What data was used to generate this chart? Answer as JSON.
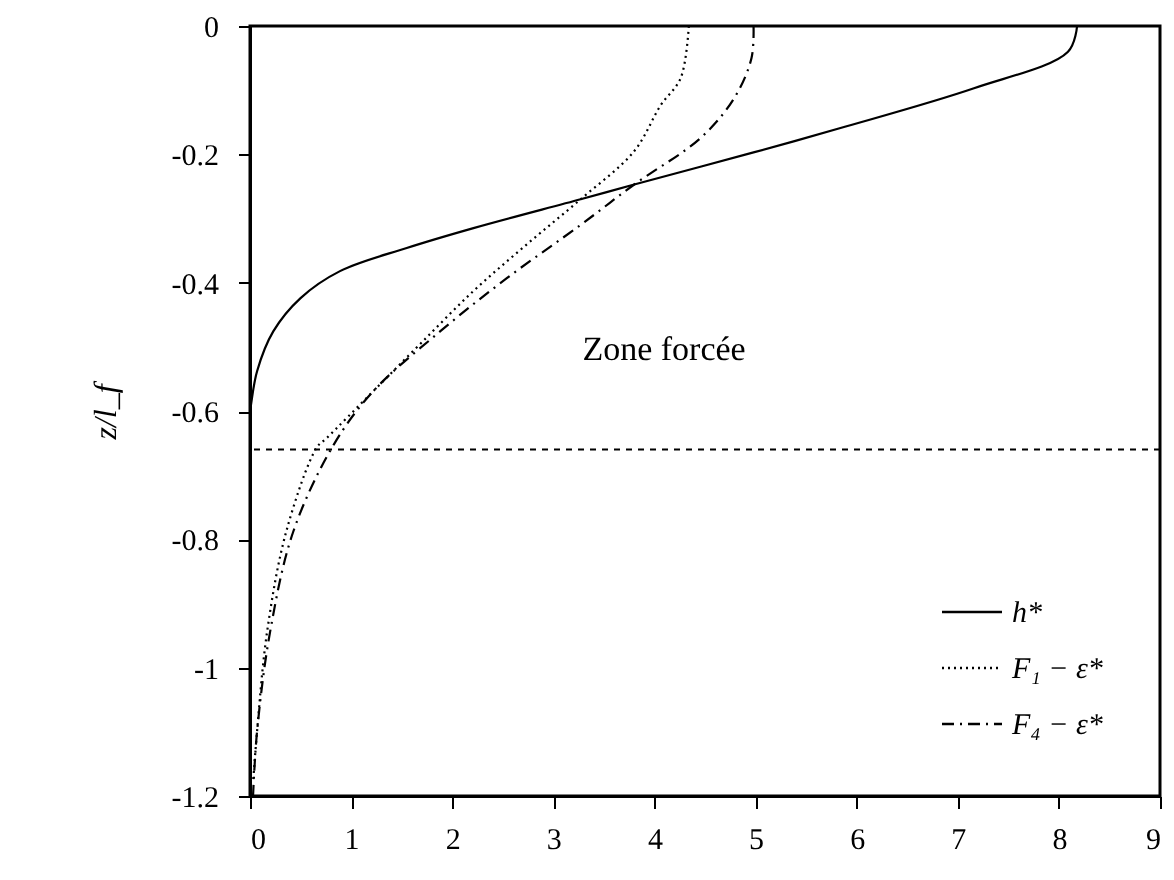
{
  "chart_data": {
    "type": "line",
    "ylabel": "z/l_f",
    "xlim": [
      0,
      9
    ],
    "xticks": [
      0,
      1,
      2,
      3,
      4,
      5,
      6,
      7,
      8,
      9
    ],
    "ylim": [
      -1.2,
      0
    ],
    "yticks": [
      0,
      -0.2,
      -0.4,
      -0.6,
      -0.8,
      -1,
      -1.2
    ],
    "grid": false,
    "legend": "bottom right",
    "marker": "none",
    "series": [
      {
        "name": "h*",
        "color": "#000000",
        "line_style": "solid",
        "x": [
          8.18,
          8.09,
          7.16,
          5.84,
          4.98,
          3.8,
          3.27,
          2.21,
          1.55,
          0.89,
          0.5,
          0.23,
          0.07,
          0.01,
          0
        ],
        "values": [
          0,
          -0.04,
          -0.097,
          -0.159,
          -0.197,
          -0.247,
          -0.27,
          -0.315,
          -0.346,
          -0.382,
          -0.424,
          -0.476,
          -0.538,
          -0.59,
          -0.6
        ]
      },
      {
        "name": "F₁ − ε*",
        "color": "#000000",
        "line_style": "dotted",
        "x": [
          4.34,
          4.26,
          4.06,
          3.8,
          3.27,
          2.74,
          2.21,
          1.68,
          1.22,
          0.76,
          0.66,
          0.36,
          0.17,
          0.07,
          0.03
        ],
        "values": [
          0,
          -0.081,
          -0.124,
          -0.195,
          -0.27,
          -0.34,
          -0.413,
          -0.496,
          -0.569,
          -0.642,
          -0.657,
          -0.787,
          -0.943,
          -1.099,
          -1.18
        ]
      },
      {
        "name": "F₄ − ε*",
        "color": "#000000",
        "line_style": "dashdot",
        "x": [
          4.98,
          4.96,
          4.79,
          4.46,
          3.8,
          3.27,
          2.54,
          1.88,
          1.22,
          0.83,
          0.43,
          0.2,
          0.07,
          0.03
        ],
        "values": [
          0,
          -0.05,
          -0.112,
          -0.174,
          -0.247,
          -0.31,
          -0.393,
          -0.476,
          -0.569,
          -0.652,
          -0.787,
          -0.943,
          -1.099,
          -1.2
        ]
      }
    ],
    "ref_lines": [
      {
        "axis": "y",
        "value": -0.66,
        "color": "#000000",
        "line_style": "dashed"
      }
    ],
    "annotations": [
      "Zone forcée"
    ]
  }
}
